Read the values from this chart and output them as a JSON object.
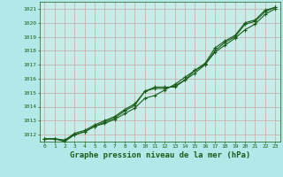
{
  "title": "Graphe pression niveau de la mer (hPa)",
  "x": [
    0,
    1,
    2,
    3,
    4,
    5,
    6,
    7,
    8,
    9,
    10,
    11,
    12,
    13,
    14,
    15,
    16,
    17,
    18,
    19,
    20,
    21,
    22,
    23
  ],
  "line1": [
    1011.7,
    1011.7,
    1011.6,
    1012.1,
    1012.3,
    1012.7,
    1013.0,
    1013.3,
    1013.8,
    1014.2,
    1015.1,
    1015.4,
    1015.4,
    1015.4,
    1015.9,
    1016.6,
    1017.1,
    1018.2,
    1018.7,
    1019.1,
    1020.0,
    1020.2,
    1020.9,
    1021.1
  ],
  "line2": [
    1011.7,
    1011.7,
    1011.5,
    1012.0,
    1012.2,
    1012.6,
    1012.8,
    1013.1,
    1013.5,
    1013.9,
    1014.6,
    1014.8,
    1015.2,
    1015.6,
    1016.1,
    1016.6,
    1017.0,
    1017.9,
    1018.4,
    1018.9,
    1019.5,
    1019.9,
    1020.6,
    1021.0
  ],
  "line3": [
    1011.7,
    1011.7,
    1011.6,
    1012.0,
    1012.2,
    1012.6,
    1012.9,
    1013.2,
    1013.7,
    1014.1,
    1015.1,
    1015.3,
    1015.3,
    1015.5,
    1015.9,
    1016.4,
    1017.0,
    1018.0,
    1018.6,
    1019.0,
    1019.9,
    1020.1,
    1020.8,
    1021.1
  ],
  "ylim": [
    1011.5,
    1021.5
  ],
  "yticks": [
    1012,
    1013,
    1014,
    1015,
    1016,
    1017,
    1018,
    1019,
    1020,
    1021
  ],
  "xticks": [
    0,
    1,
    2,
    3,
    4,
    5,
    6,
    7,
    8,
    9,
    10,
    11,
    12,
    13,
    14,
    15,
    16,
    17,
    18,
    19,
    20,
    21,
    22,
    23
  ],
  "line_color": "#1a5c1a",
  "bg_color": "#b3e8e8",
  "plot_bg": "#c8ede8",
  "grid_color_h": "#c8a8a8",
  "grid_color_v": "#c8a8a8",
  "title_color": "#1a5c1a",
  "title_fontsize": 6.5,
  "marker": "+",
  "marker_size": 3.5,
  "linewidth": 0.8
}
